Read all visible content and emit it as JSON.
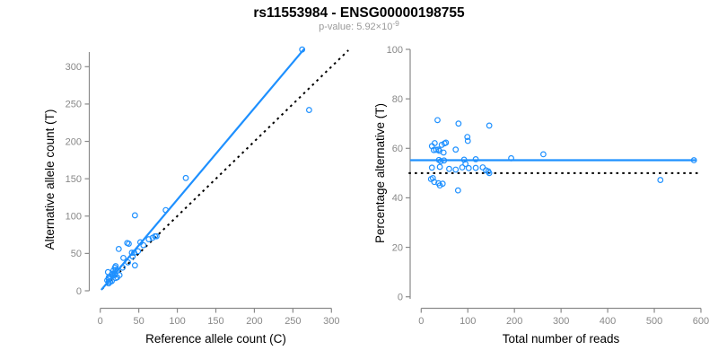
{
  "header": {
    "title": "rs11553984 - ENSG00000198755",
    "subtitle_prefix": "p-value: 5.92×10",
    "subtitle_exponent": "-9"
  },
  "colors": {
    "accent": "#1E90FF",
    "axis_line": "#8a8a8a",
    "tick_label": "#888888",
    "axis_title": "#000000",
    "title": "#000000",
    "subtitle": "#9a9a9a",
    "reference_line": "#000000"
  },
  "chart_data": [
    {
      "type": "scatter",
      "xlabel": "Reference allele count (C)",
      "ylabel": "Alternative allele count (T)",
      "xlim": [
        0,
        300
      ],
      "ylim": [
        0,
        300
      ],
      "xticks": [
        0,
        50,
        100,
        150,
        200,
        250,
        300
      ],
      "yticks": [
        0,
        50,
        100,
        150,
        200,
        250,
        300
      ],
      "grid": false,
      "legend": "none",
      "points": [
        [
          262,
          323
        ],
        [
          271,
          242
        ],
        [
          111,
          151
        ],
        [
          85,
          108
        ],
        [
          45,
          101
        ],
        [
          73,
          73
        ],
        [
          71,
          73
        ],
        [
          68,
          71
        ],
        [
          63,
          69
        ],
        [
          56,
          61
        ],
        [
          52,
          65
        ],
        [
          49,
          53
        ],
        [
          42,
          46
        ],
        [
          36,
          38
        ],
        [
          29,
          31
        ],
        [
          19,
          21
        ],
        [
          41,
          51
        ],
        [
          44,
          51
        ],
        [
          35,
          64
        ],
        [
          37,
          63
        ],
        [
          24,
          56
        ],
        [
          30,
          44
        ],
        [
          45,
          34
        ],
        [
          10,
          25
        ],
        [
          11,
          18
        ],
        [
          19,
          31
        ],
        [
          20,
          33
        ],
        [
          17,
          27
        ],
        [
          9,
          14
        ],
        [
          11,
          16
        ],
        [
          13,
          19
        ],
        [
          15,
          22
        ],
        [
          16,
          23
        ],
        [
          20,
          28
        ],
        [
          17,
          21
        ],
        [
          19,
          23
        ],
        [
          22,
          27
        ],
        [
          11,
          12
        ],
        [
          11,
          10
        ],
        [
          13,
          12
        ],
        [
          15,
          13
        ],
        [
          20,
          17
        ],
        [
          22,
          18
        ],
        [
          25,
          21
        ]
      ],
      "fit_line": {
        "x1": 2,
        "y1": 2,
        "x2": 264,
        "y2": 323,
        "style": "solid"
      },
      "reference_line": {
        "x1": 2,
        "y1": 2,
        "x2": 322,
        "y2": 322,
        "style": "dotted",
        "meaning": "identity y=x"
      }
    },
    {
      "type": "scatter",
      "xlabel": "Total number of reads",
      "ylabel": "Percentage alternative (T)",
      "xlim": [
        0,
        600
      ],
      "ylim": [
        0,
        100
      ],
      "xticks": [
        0,
        100,
        200,
        300,
        400,
        500,
        600
      ],
      "yticks": [
        0,
        20,
        40,
        60,
        80,
        100
      ],
      "grid": false,
      "legend": "none",
      "points": [
        [
          585,
          55.2
        ],
        [
          513,
          47.2
        ],
        [
          262,
          57.6
        ],
        [
          193,
          56.0
        ],
        [
          146,
          69.2
        ],
        [
          146,
          50.0
        ],
        [
          144,
          50.7
        ],
        [
          139,
          51.1
        ],
        [
          132,
          52.3
        ],
        [
          117,
          52.1
        ],
        [
          117,
          55.6
        ],
        [
          102,
          52.0
        ],
        [
          88,
          52.3
        ],
        [
          74,
          51.4
        ],
        [
          60,
          51.7
        ],
        [
          40,
          52.5
        ],
        [
          92,
          55.4
        ],
        [
          95,
          53.7
        ],
        [
          99,
          64.6
        ],
        [
          100,
          63.0
        ],
        [
          80,
          70.0
        ],
        [
          74,
          59.5
        ],
        [
          79,
          43.0
        ],
        [
          35,
          71.4
        ],
        [
          29,
          62.1
        ],
        [
          50,
          62.0
        ],
        [
          53,
          62.3
        ],
        [
          44,
          61.4
        ],
        [
          23,
          60.9
        ],
        [
          27,
          59.3
        ],
        [
          32,
          59.4
        ],
        [
          37,
          59.5
        ],
        [
          39,
          59.0
        ],
        [
          48,
          58.3
        ],
        [
          38,
          55.3
        ],
        [
          42,
          54.8
        ],
        [
          49,
          55.1
        ],
        [
          23,
          52.2
        ],
        [
          21,
          47.6
        ],
        [
          25,
          48.0
        ],
        [
          28,
          46.4
        ],
        [
          37,
          45.9
        ],
        [
          40,
          45.0
        ],
        [
          46,
          45.7
        ]
      ],
      "fit_line": {
        "x1": -22,
        "y1": 55.2,
        "x2": 588,
        "y2": 55.2,
        "style": "solid"
      },
      "reference_line": {
        "x1": -27,
        "y1": 50,
        "x2": 601,
        "y2": 50,
        "style": "dotted",
        "meaning": "50% balance"
      }
    }
  ]
}
